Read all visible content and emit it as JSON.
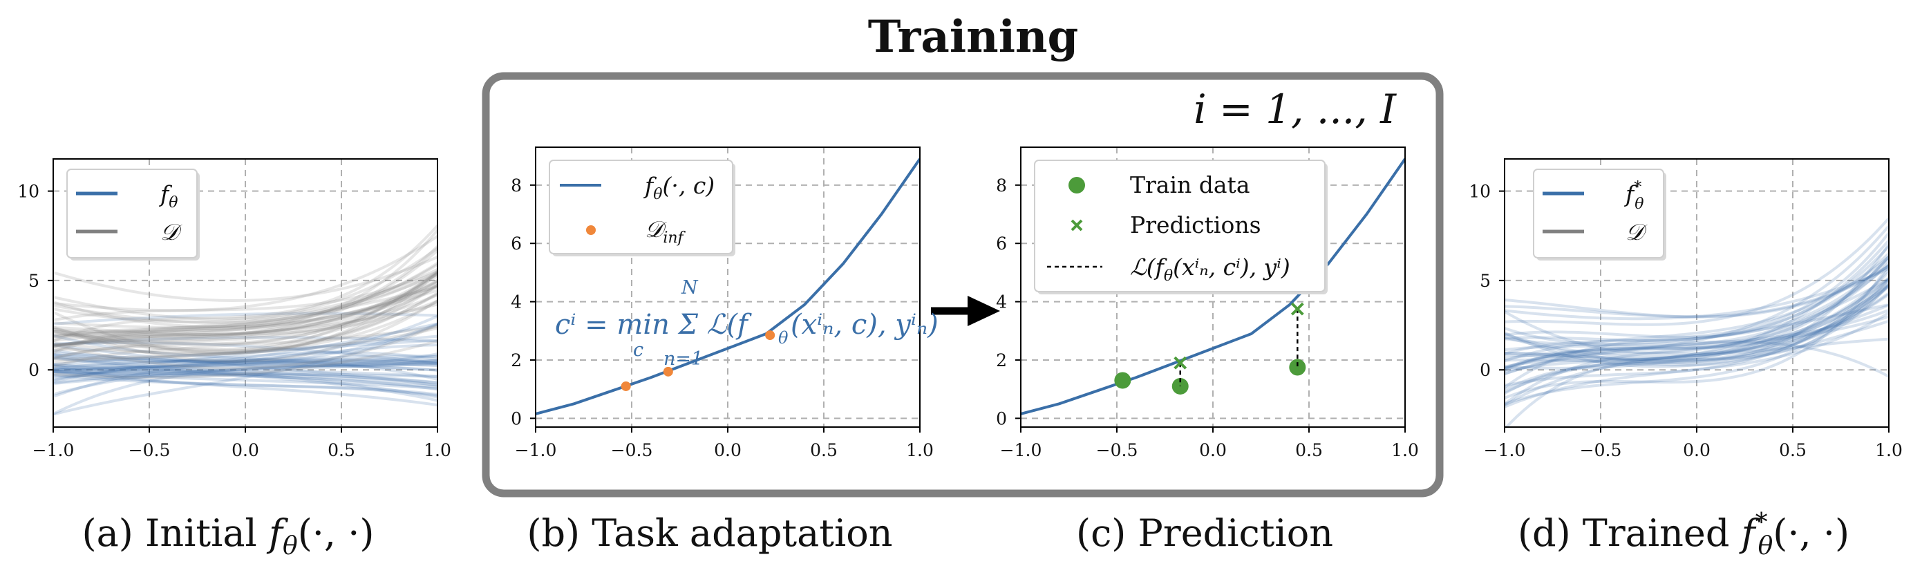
{
  "figure": {
    "title": "Training",
    "loop_label": "i = 1, ..., I",
    "formula": "cⁱ = min_c Σ_{n=1}^{N} ℒ(f_θ(xⁱₙ, c), yⁱₙ)",
    "formula_main": "cⁱ = min Σ ℒ(f",
    "formula_tail": "(xⁱₙ, c), yⁱₙ)",
    "formula_sub_c": "c",
    "formula_sup_N": "N",
    "formula_sub_n": "n=1",
    "formula_theta": "θ",
    "colors": {
      "blue": "#3a6fa8",
      "gray": "#808080",
      "orange": "#f0873a",
      "green": "#4c9b3a",
      "frame": "#808080"
    }
  },
  "panels": [
    {
      "caption": "(a) Initial f_θ(·,·)",
      "legend": [
        "f_θ",
        "𝒟"
      ]
    },
    {
      "caption": "(b) Task adaptation",
      "legend": [
        "f_θ(·, c)",
        "𝒟_inf"
      ]
    },
    {
      "caption": "(c) Prediction",
      "legend": [
        "Train data",
        "Predictions",
        "ℒ(f_θ(xⁱₙ, cⁱ), yⁱ)"
      ]
    },
    {
      "caption": "(d) Trained f*_θ(·,·)",
      "legend": [
        "f*_θ",
        "𝒟"
      ]
    }
  ],
  "captions": {
    "a_pre": "(a) Initial ",
    "a_f": "f",
    "a_sub": "θ",
    "a_post": "(·, ·)",
    "b": "(b) Task adaptation",
    "c": "(c) Prediction",
    "d_pre": "(d) Trained ",
    "d_f": "f",
    "d_sup": "*",
    "d_sub": "θ",
    "d_post": "(·, ·)"
  },
  "legends": {
    "a": {
      "f": "f",
      "f_sub": "θ",
      "D": "𝒟"
    },
    "b": {
      "f": "f",
      "f_sub": "θ",
      "f_post": "(·, c)",
      "D": "𝒟",
      "D_sub": "inf"
    },
    "c": {
      "train": "Train data",
      "pred": "Predictions",
      "loss": "ℒ(f",
      "loss_sub": "θ",
      "loss_post": "(xⁱₙ, cⁱ), yⁱ)"
    },
    "d": {
      "f": "f",
      "f_sup": "*",
      "f_sub": "θ",
      "D": "𝒟"
    }
  },
  "chart_data": [
    {
      "id": "a",
      "type": "line",
      "xlim": [
        -1.0,
        1.0
      ],
      "ylim": [
        -3.2,
        11.8
      ],
      "xticks": [
        -1.0,
        -0.5,
        0.0,
        0.5,
        1.0
      ],
      "xticklabels": [
        "−1.0",
        "−0.5",
        "0.0",
        "0.5",
        "1.0"
      ],
      "yticks": [
        0,
        5,
        10
      ],
      "yticklabels": [
        "0",
        "5",
        "10"
      ],
      "grid": true,
      "legend_position": "top-left",
      "series": [
        {
          "name": "f_θ",
          "kind": "function-family",
          "count": 40,
          "center": [
            0.0,
            0.0,
            0.0,
            0.0
          ],
          "spread": [
            0.8,
            0.6,
            0.4,
            0.35
          ]
        },
        {
          "name": "𝒟",
          "kind": "function-family",
          "count": 40,
          "center": [
            1.8,
            0.7,
            1.6,
            0.9
          ],
          "spread": [
            0.9,
            0.3,
            0.9,
            0.9
          ]
        }
      ]
    },
    {
      "id": "b",
      "type": "line",
      "xlim": [
        -1.0,
        1.0
      ],
      "ylim": [
        -0.3,
        9.3
      ],
      "xticks": [
        -1.0,
        -0.5,
        0.0,
        0.5,
        1.0
      ],
      "xticklabels": [
        "−1.0",
        "−0.5",
        "0.0",
        "0.5",
        "1.0"
      ],
      "yticks": [
        0,
        2,
        4,
        6,
        8
      ],
      "yticklabels": [
        "0",
        "2",
        "4",
        "6",
        "8"
      ],
      "grid": true,
      "legend_position": "top-left",
      "series": [
        {
          "name": "f_θ(·, c)",
          "kind": "line",
          "x": [
            -1.0,
            -0.8,
            -0.6,
            -0.4,
            -0.2,
            0.0,
            0.2,
            0.4,
            0.6,
            0.8,
            1.0
          ],
          "y": [
            0.15,
            0.5,
            0.95,
            1.4,
            1.9,
            2.4,
            2.9,
            3.9,
            5.3,
            7.0,
            8.9
          ]
        },
        {
          "name": "𝒟_inf",
          "kind": "scatter",
          "x": [
            -0.53,
            -0.31,
            0.22
          ],
          "y": [
            1.1,
            1.6,
            2.85
          ]
        }
      ]
    },
    {
      "id": "c",
      "type": "line",
      "xlim": [
        -1.0,
        1.0
      ],
      "ylim": [
        -0.3,
        9.3
      ],
      "xticks": [
        -1.0,
        -0.5,
        0.0,
        0.5,
        1.0
      ],
      "xticklabels": [
        "−1.0",
        "−0.5",
        "0.0",
        "0.5",
        "1.0"
      ],
      "yticks": [
        0,
        2,
        4,
        6,
        8
      ],
      "yticklabels": [
        "0",
        "2",
        "4",
        "6",
        "8"
      ],
      "grid": true,
      "legend_position": "top-left",
      "series": [
        {
          "name": "curve",
          "kind": "line",
          "x": [
            -1.0,
            -0.8,
            -0.6,
            -0.4,
            -0.2,
            0.0,
            0.2,
            0.4,
            0.6,
            0.8,
            1.0
          ],
          "y": [
            0.15,
            0.5,
            0.95,
            1.4,
            1.9,
            2.4,
            2.9,
            3.9,
            5.3,
            7.0,
            8.9
          ]
        },
        {
          "name": "Train data",
          "kind": "scatter",
          "x": [
            -0.47,
            -0.17,
            0.44
          ],
          "y": [
            1.3,
            1.1,
            1.75
          ]
        },
        {
          "name": "Predictions",
          "kind": "scatter",
          "x": [
            -0.17,
            0.44
          ],
          "y": [
            1.9,
            3.75
          ]
        }
      ]
    },
    {
      "id": "d",
      "type": "line",
      "xlim": [
        -1.0,
        1.0
      ],
      "ylim": [
        -3.2,
        11.8
      ],
      "xticks": [
        -1.0,
        -0.5,
        0.0,
        0.5,
        1.0
      ],
      "xticklabels": [
        "−1.0",
        "−0.5",
        "0.0",
        "0.5",
        "1.0"
      ],
      "yticks": [
        0,
        5,
        10
      ],
      "yticklabels": [
        "0",
        "5",
        "10"
      ],
      "grid": true,
      "legend_position": "top-left",
      "series": [
        {
          "name": "f*_θ",
          "kind": "function-family",
          "count": 40,
          "center": [
            1.4,
            0.9,
            1.6,
            1.8
          ],
          "spread": [
            0.9,
            0.4,
            0.8,
            1.0
          ]
        },
        {
          "name": "𝒟",
          "kind": "function-family",
          "count": 40,
          "center": [
            1.4,
            0.9,
            1.6,
            1.8
          ],
          "spread": [
            0.9,
            0.4,
            0.8,
            1.0
          ]
        }
      ]
    }
  ]
}
